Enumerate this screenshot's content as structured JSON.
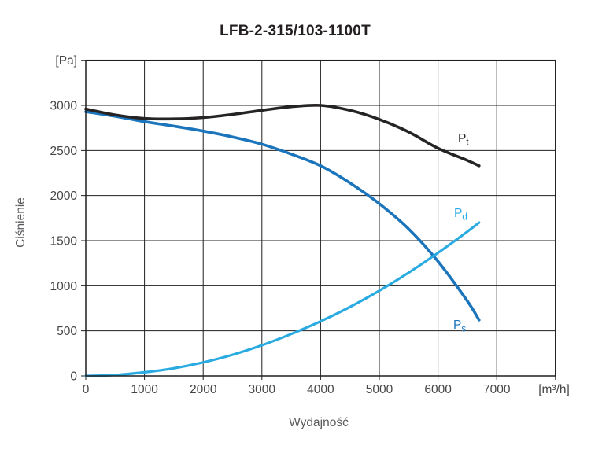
{
  "title": "LFB-2-315/103-1100T",
  "chart_data": {
    "type": "line",
    "title": "LFB-2-315/103-1100T",
    "xlabel": "Wydajność",
    "x_unit": "[m³/h]",
    "ylabel": "Ciśnienie",
    "y_unit": "[Pa]",
    "grid": true,
    "legend_position": "inline-curve-labels",
    "x_axis": {
      "label": "Wydajność",
      "unit": "[m³/h]",
      "min": 0,
      "max": 8000,
      "grid_step": 1000,
      "ticks": [
        "0",
        "1000",
        "2000",
        "3000",
        "4000",
        "5000",
        "6000",
        "7000"
      ]
    },
    "y_axis": {
      "label": "Ciśnienie",
      "unit": "[Pa]",
      "min": 0,
      "max": 3500,
      "grid_step": 500,
      "ticks": [
        "0",
        "500",
        "1000",
        "1500",
        "2000",
        "2500",
        "3000"
      ]
    },
    "x": [
      0,
      500,
      1000,
      1500,
      2000,
      2500,
      3000,
      3500,
      4000,
      4500,
      5000,
      5500,
      6000,
      6500,
      6700
    ],
    "series": [
      {
        "name": "Pt",
        "label_main": "P",
        "label_sub": "t",
        "description": "total pressure curve",
        "color": "#262324",
        "stroke_width": 3.6,
        "values": [
          2960,
          2895,
          2855,
          2850,
          2865,
          2900,
          2945,
          2985,
          3000,
          2945,
          2845,
          2705,
          2525,
          2390,
          2330
        ]
      },
      {
        "name": "Ps",
        "label_main": "P",
        "label_sub": "s",
        "description": "static pressure curve",
        "color": "#1B75BC",
        "stroke_width": 3.6,
        "values": [
          2930,
          2880,
          2820,
          2770,
          2715,
          2650,
          2570,
          2460,
          2330,
          2140,
          1910,
          1630,
          1270,
          830,
          620
        ]
      },
      {
        "name": "Pd",
        "label_main": "P",
        "label_sub": "d",
        "description": "dynamic pressure curve",
        "color": "#29ABE2",
        "stroke_width": 3.2,
        "values": [
          0,
          10,
          40,
          85,
          150,
          235,
          340,
          465,
          605,
          765,
          945,
          1145,
          1365,
          1600,
          1700
        ]
      }
    ],
    "grid_color": "#1F1F1F",
    "frame_color": "#1F1F1F"
  }
}
